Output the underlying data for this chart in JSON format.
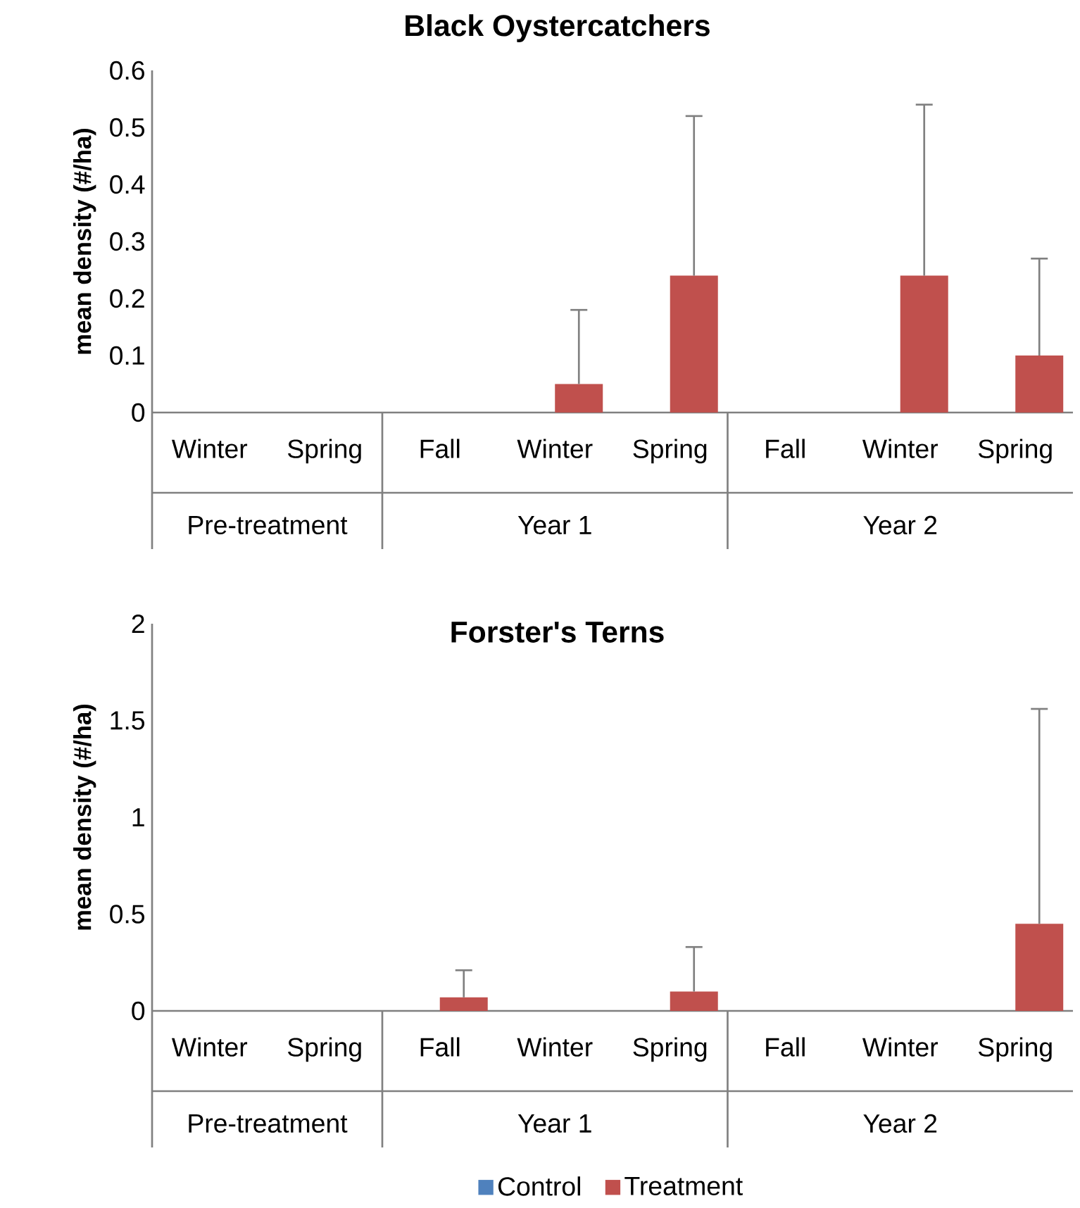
{
  "chart_data": [
    {
      "type": "bar",
      "title": "Black Oystercatchers",
      "ylabel": "mean density (#/ha)",
      "categories": [
        "Winter",
        "Spring",
        "Fall",
        "Winter",
        "Spring",
        "Fall",
        "Winter",
        "Spring"
      ],
      "series": [
        {
          "color": "#4f81bd",
          "values": [
            0,
            0,
            0,
            0,
            0,
            0,
            0,
            0
          ]
        },
        {
          "color": "#c0504d",
          "values": [
            0,
            0,
            0,
            0.05,
            0.24,
            0,
            0.24,
            0.1
          ],
          "errors": [
            null,
            null,
            null,
            [
              0.05,
              0.18
            ],
            [
              0.24,
              0.52
            ],
            null,
            [
              0.24,
              0.54
            ],
            [
              0.1,
              0.27
            ]
          ]
        }
      ],
      "ylim": [
        0,
        0.6
      ],
      "yticks": [
        0,
        0.1,
        0.2,
        0.3,
        0.4,
        0.5,
        0.6
      ],
      "annotations": [
        "Pre-treatment",
        "Year 1",
        "Year 2"
      ]
    },
    {
      "type": "bar",
      "title": "Forster's Terns",
      "ylabel": "mean density (#/ha)",
      "categories": [
        "Winter",
        "Spring",
        "Fall",
        "Winter",
        "Spring",
        "Fall",
        "Winter",
        "Spring"
      ],
      "series": [
        {
          "name": "Control",
          "color": "#4f81bd",
          "values": [
            0,
            0,
            0,
            0,
            0,
            0,
            0,
            0
          ]
        },
        {
          "name": "Treatment",
          "color": "#c0504d",
          "values": [
            0,
            0,
            0.07,
            0,
            0.1,
            0,
            0,
            0.45
          ],
          "errors": [
            null,
            null,
            [
              0.07,
              0.21
            ],
            null,
            [
              0.1,
              0.33
            ],
            null,
            null,
            [
              0.45,
              1.56
            ]
          ]
        }
      ],
      "ylim": [
        0,
        2
      ],
      "yticks": [
        0,
        0.5,
        1,
        1.5,
        2
      ],
      "annotations": [
        "Pre-treatment",
        "Year 1",
        "Year 2"
      ],
      "legend": "bottom"
    }
  ]
}
